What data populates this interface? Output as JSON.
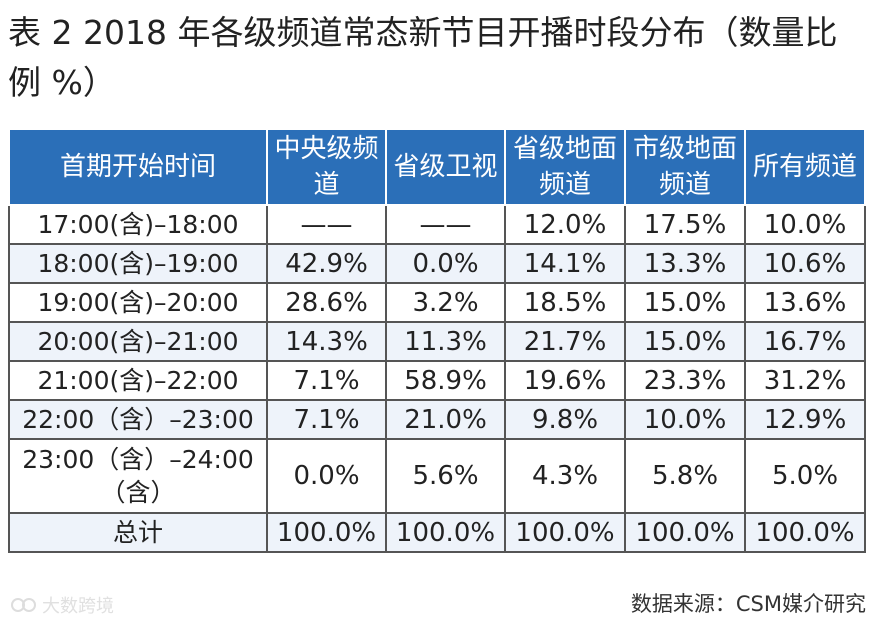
{
  "title": "表 2  2018 年各级频道常态新节目开播时段分布（数量比例 %）",
  "table": {
    "headers": [
      "首期开始时间",
      "中央级频道",
      "省级卫视",
      "省级地面频道",
      "市级地面频道",
      "所有频道"
    ],
    "rows": [
      {
        "time": "17:00(含)–18:00",
        "cells": [
          "——",
          "——",
          "12.0%",
          "17.5%",
          "10.0%"
        ]
      },
      {
        "time": "18:00(含)–19:00",
        "cells": [
          "42.9%",
          "0.0%",
          "14.1%",
          "13.3%",
          "10.6%"
        ]
      },
      {
        "time": "19:00(含)–20:00",
        "cells": [
          "28.6%",
          "3.2%",
          "18.5%",
          "15.0%",
          "13.6%"
        ]
      },
      {
        "time": "20:00(含)–21:00",
        "cells": [
          "14.3%",
          "11.3%",
          "21.7%",
          "15.0%",
          "16.7%"
        ]
      },
      {
        "time": "21:00(含)–22:00",
        "cells": [
          "7.1%",
          "58.9%",
          "19.6%",
          "23.3%",
          "31.2%"
        ]
      },
      {
        "time": "22:00（含）–23:00",
        "cells": [
          "7.1%",
          "21.0%",
          "9.8%",
          "10.0%",
          "12.9%"
        ]
      },
      {
        "time": "23:00（含）–24:00（含）",
        "cells": [
          "0.0%",
          "5.6%",
          "4.3%",
          "5.8%",
          "5.0%"
        ]
      },
      {
        "time": "总计",
        "cells": [
          "100.0%",
          "100.0%",
          "100.0%",
          "100.0%",
          "100.0%"
        ]
      }
    ]
  },
  "source": "数据来源：CSM媒介研究",
  "watermark": "大数跨境"
}
